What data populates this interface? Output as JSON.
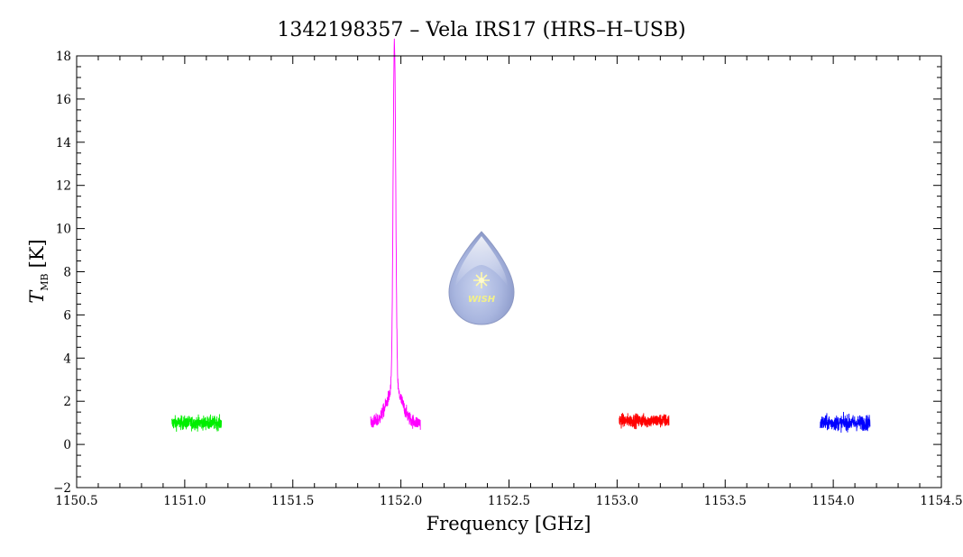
{
  "chart_data": {
    "type": "line",
    "title": "1342198357 – Vela IRS17 (HRS–H–USB)",
    "xlabel": "Frequency [GHz]",
    "ylabel_symbol": "T",
    "ylabel_subscript": "MB",
    "ylabel_unit": "[K]",
    "xlim": [
      1150.5,
      1154.5
    ],
    "ylim": [
      -2,
      18
    ],
    "x_major_ticks": [
      1150.5,
      1151.0,
      1151.5,
      1152.0,
      1152.5,
      1153.0,
      1153.5,
      1154.0,
      1154.5
    ],
    "x_tick_labels": [
      "1150.5",
      "1151.0",
      "1151.5",
      "1152.0",
      "1152.5",
      "1153.0",
      "1153.5",
      "1154.0",
      "1154.5"
    ],
    "y_major_ticks": [
      -2,
      0,
      2,
      4,
      6,
      8,
      10,
      12,
      14,
      16,
      18
    ],
    "y_tick_labels": [
      "−2",
      "0",
      "2",
      "4",
      "6",
      "8",
      "10",
      "12",
      "14",
      "16",
      "18"
    ],
    "grid": false,
    "series": [
      {
        "x_range": [
          1150.94,
          1151.17
        ],
        "baseline": 1.0,
        "noise": 0.45,
        "color": "#00ee00"
      },
      {
        "x_range": [
          1151.86,
          1152.09
        ],
        "baseline": 1.0,
        "noise": 0.45,
        "color": "#ff00ff",
        "peak": {
          "center": 1151.97,
          "height": 16.1,
          "width": 0.006,
          "wing_height": 1.6,
          "wing_width": 0.035
        }
      },
      {
        "x_range": [
          1153.01,
          1153.24
        ],
        "baseline": 1.1,
        "noise": 0.45,
        "color": "#ff0000"
      },
      {
        "x_range": [
          1153.94,
          1154.17
        ],
        "baseline": 1.0,
        "noise": 0.5,
        "color": "#0000ff"
      }
    ],
    "logo": {
      "text": "WISH"
    }
  }
}
